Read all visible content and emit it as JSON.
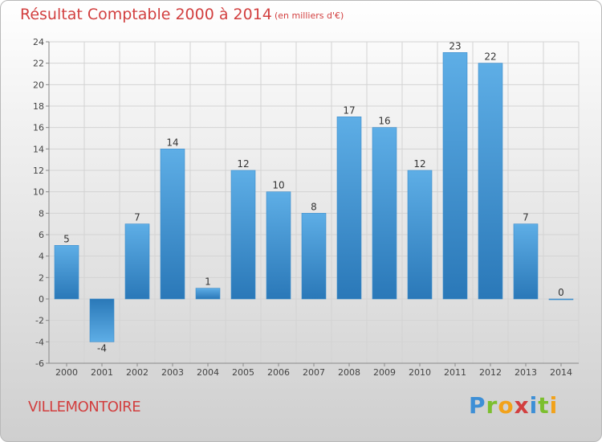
{
  "header": {
    "title": "Résultat Comptable 2000 à 2014",
    "unit": "(en milliers d'€)"
  },
  "footer": {
    "commune": "VILLEMONTOIRE",
    "logo_text": "Proxiti"
  },
  "colors": {
    "title": "#d23f3f",
    "bar_light": "#5eaee6",
    "bar_dark": "#2a78b8"
  },
  "chart_data": {
    "type": "bar",
    "title": "Résultat Comptable 2000 à 2014",
    "subtitle": "(en milliers d'€)",
    "categories": [
      "2000",
      "2001",
      "2002",
      "2003",
      "2004",
      "2005",
      "2006",
      "2007",
      "2008",
      "2009",
      "2010",
      "2011",
      "2012",
      "2013",
      "2014"
    ],
    "values": [
      5,
      -4,
      7,
      14,
      1,
      12,
      10,
      8,
      17,
      16,
      12,
      23,
      22,
      7,
      0
    ],
    "yticks": [
      -6,
      -4,
      -2,
      0,
      2,
      4,
      6,
      8,
      10,
      12,
      14,
      16,
      18,
      20,
      22,
      24
    ],
    "ylim": [
      -6,
      24
    ],
    "grid": true,
    "legend": "none"
  }
}
